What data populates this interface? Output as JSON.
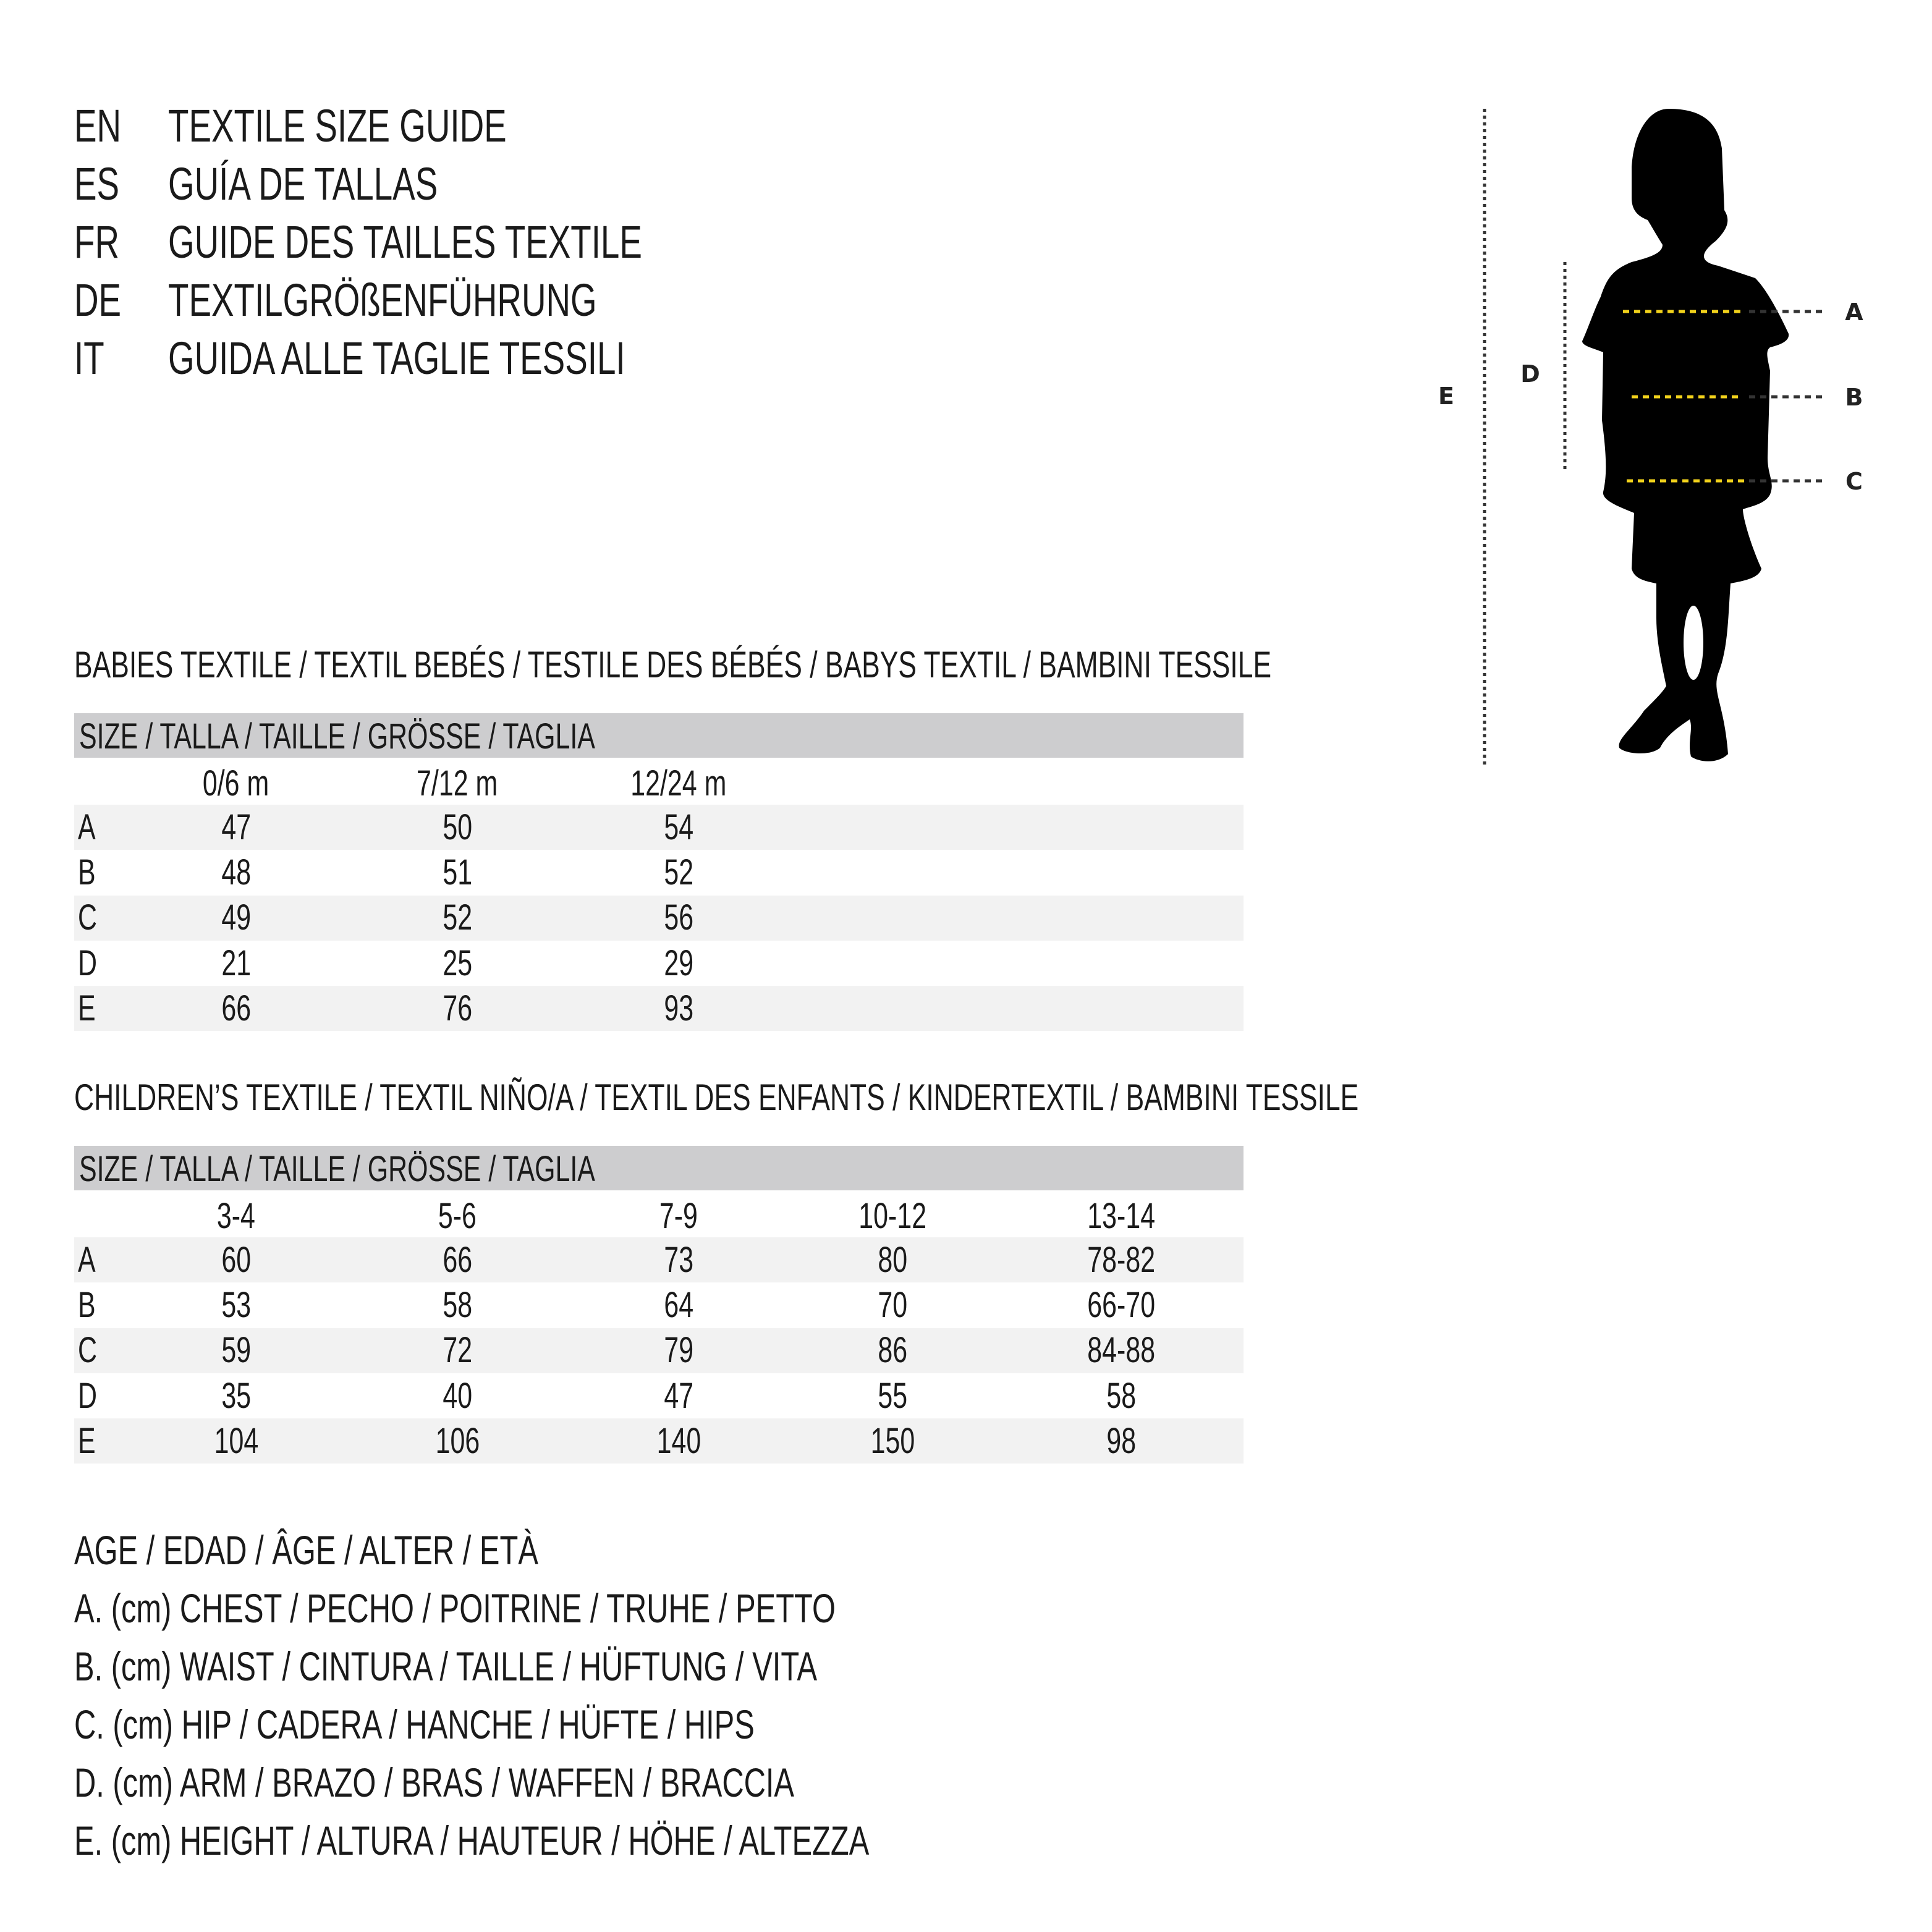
{
  "header": {
    "lines": [
      {
        "code": "EN",
        "text": "TEXTILE SIZE GUIDE"
      },
      {
        "code": "ES",
        "text": "GUÍA DE TALLAS"
      },
      {
        "code": "FR",
        "text": "GUIDE DES TAILLES TEXTILE"
      },
      {
        "code": "DE",
        "text": "TEXTILGRÖßENFÜHRUNG"
      },
      {
        "code": "IT",
        "text": "GUIDA ALLE TAGLIE TESSILI"
      }
    ]
  },
  "babies": {
    "title": "BABIES TEXTILE / TEXTIL BEBÉS / TESTILE DES BÉBÉS / BABYS TEXTIL / BAMBINI TESSILE",
    "size_header": "SIZE / TALLA / TAILLE / GRÖSSE / TAGLIA",
    "columns": [
      "0/6 m",
      "7/12 m",
      "12/24 m"
    ],
    "rows": [
      {
        "label": "A",
        "values": [
          "47",
          "50",
          "54"
        ]
      },
      {
        "label": "B",
        "values": [
          "48",
          "51",
          "52"
        ]
      },
      {
        "label": "C",
        "values": [
          "49",
          "52",
          "56"
        ]
      },
      {
        "label": "D",
        "values": [
          "21",
          "25",
          "29"
        ]
      },
      {
        "label": "E",
        "values": [
          "66",
          "76",
          "93"
        ]
      }
    ]
  },
  "children": {
    "title": "CHILDREN’S TEXTILE / TEXTIL NIÑO/A / TEXTIL DES ENFANTS / KINDERTEXTIL / BAMBINI TESSILE",
    "size_header": "SIZE / TALLA / TAILLE / GRÖSSE / TAGLIA",
    "columns": [
      "3-4",
      "5-6",
      "7-9",
      "10-12",
      "13-14"
    ],
    "rows": [
      {
        "label": "A",
        "values": [
          "60",
          "66",
          "73",
          "80",
          "78-82"
        ]
      },
      {
        "label": "B",
        "values": [
          "53",
          "58",
          "64",
          "70",
          "66-70"
        ]
      },
      {
        "label": "C",
        "values": [
          "59",
          "72",
          "79",
          "86",
          "84-88"
        ]
      },
      {
        "label": "D",
        "values": [
          "35",
          "40",
          "47",
          "55",
          "58"
        ]
      },
      {
        "label": "E",
        "values": [
          "104",
          "106",
          "140",
          "150",
          "98"
        ]
      }
    ]
  },
  "legend": {
    "items": [
      "AGE / EDAD / ÂGE / ALTER / ETÀ",
      "A. (cm) CHEST / PECHO / POITRINE / TRUHE / PETTO",
      "B. (cm) WAIST / CINTURA / TAILLE / HÜFTUNG / VITA",
      "C. (cm) HIP / CADERA / HANCHE / HÜFTE / HIPS",
      "D. (cm) ARM / BRAZO / BRAS / WAFFEN / BRACCIA",
      "E. (cm) HEIGHT / ALTURA / HAUTEUR / HÖHE / ALTEZZA"
    ]
  },
  "figure": {
    "icon": "child-silhouette-icon",
    "labels": {
      "A": "A",
      "B": "B",
      "C": "C",
      "D": "D",
      "E": "E"
    },
    "colors": {
      "measure_line": "#f2d21b",
      "guide_line": "#333333",
      "silhouette": "#000000"
    }
  }
}
